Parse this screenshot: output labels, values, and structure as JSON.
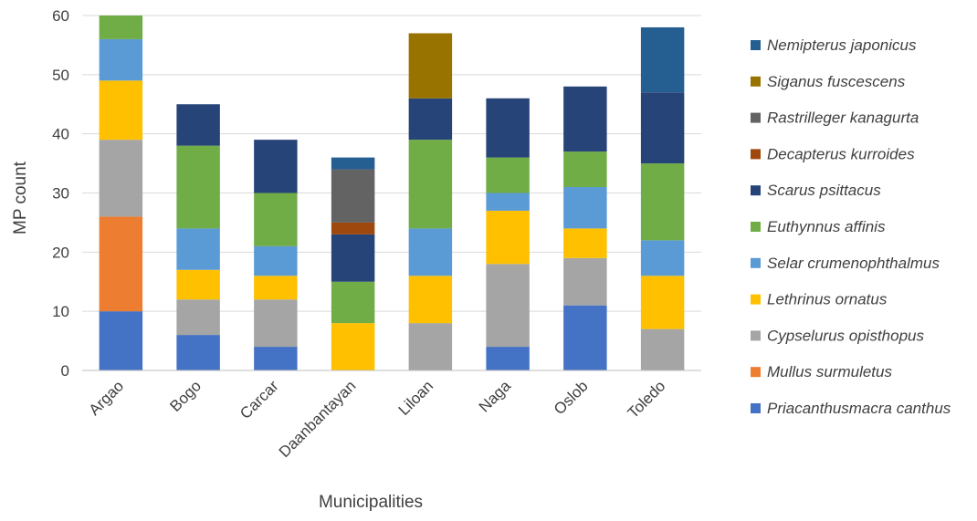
{
  "chart_data": {
    "type": "bar",
    "stacked": true,
    "title": "",
    "xlabel": "Municipalities",
    "ylabel": "MP count",
    "ylim": [
      0,
      60
    ],
    "yticks": [
      0,
      10,
      20,
      30,
      40,
      50,
      60
    ],
    "grid": "horizontal",
    "legend_position": "right",
    "categories": [
      "Argao",
      "Bogo",
      "Carcar",
      "Daanbantayan",
      "Liloan",
      "Naga",
      "Oslob",
      "Toledo"
    ],
    "series": [
      {
        "name": "Priacanthusmacra canthus",
        "color": "#4472C4",
        "values": [
          10,
          6,
          4,
          0,
          0,
          4,
          11,
          0
        ]
      },
      {
        "name": "Mullus surmuletus",
        "color": "#ED7D31",
        "values": [
          16,
          0,
          0,
          0,
          0,
          0,
          0,
          0
        ]
      },
      {
        "name": "Cypselurus opisthopus",
        "color": "#A5A5A5",
        "values": [
          13,
          6,
          8,
          0,
          8,
          14,
          8,
          7
        ]
      },
      {
        "name": "Lethrinus ornatus",
        "color": "#FFC000",
        "values": [
          10,
          5,
          4,
          8,
          8,
          9,
          5,
          9
        ]
      },
      {
        "name": "Selar crumenophthalmus",
        "color": "#5B9BD5",
        "values": [
          7,
          7,
          5,
          0,
          8,
          3,
          7,
          6
        ]
      },
      {
        "name": "Euthynnus affinis",
        "color": "#70AD47",
        "values": [
          4,
          14,
          9,
          7,
          15,
          6,
          6,
          13
        ]
      },
      {
        "name": "Scarus psittacus",
        "color": "#264478",
        "values": [
          0,
          7,
          9,
          8,
          7,
          10,
          11,
          12
        ]
      },
      {
        "name": "Decapterus kurroides",
        "color": "#9E480E",
        "values": [
          0,
          0,
          0,
          2,
          0,
          0,
          0,
          0
        ]
      },
      {
        "name": "Rastrilleger kanagurta",
        "color": "#636363",
        "values": [
          0,
          0,
          0,
          9,
          0,
          0,
          0,
          0
        ]
      },
      {
        "name": "Siganus fuscescens",
        "color": "#997300",
        "values": [
          0,
          0,
          0,
          0,
          11,
          0,
          0,
          0
        ]
      },
      {
        "name": "Nemipterus japonicus",
        "color": "#255E91",
        "values": [
          0,
          0,
          0,
          2,
          0,
          0,
          0,
          11
        ]
      }
    ]
  }
}
